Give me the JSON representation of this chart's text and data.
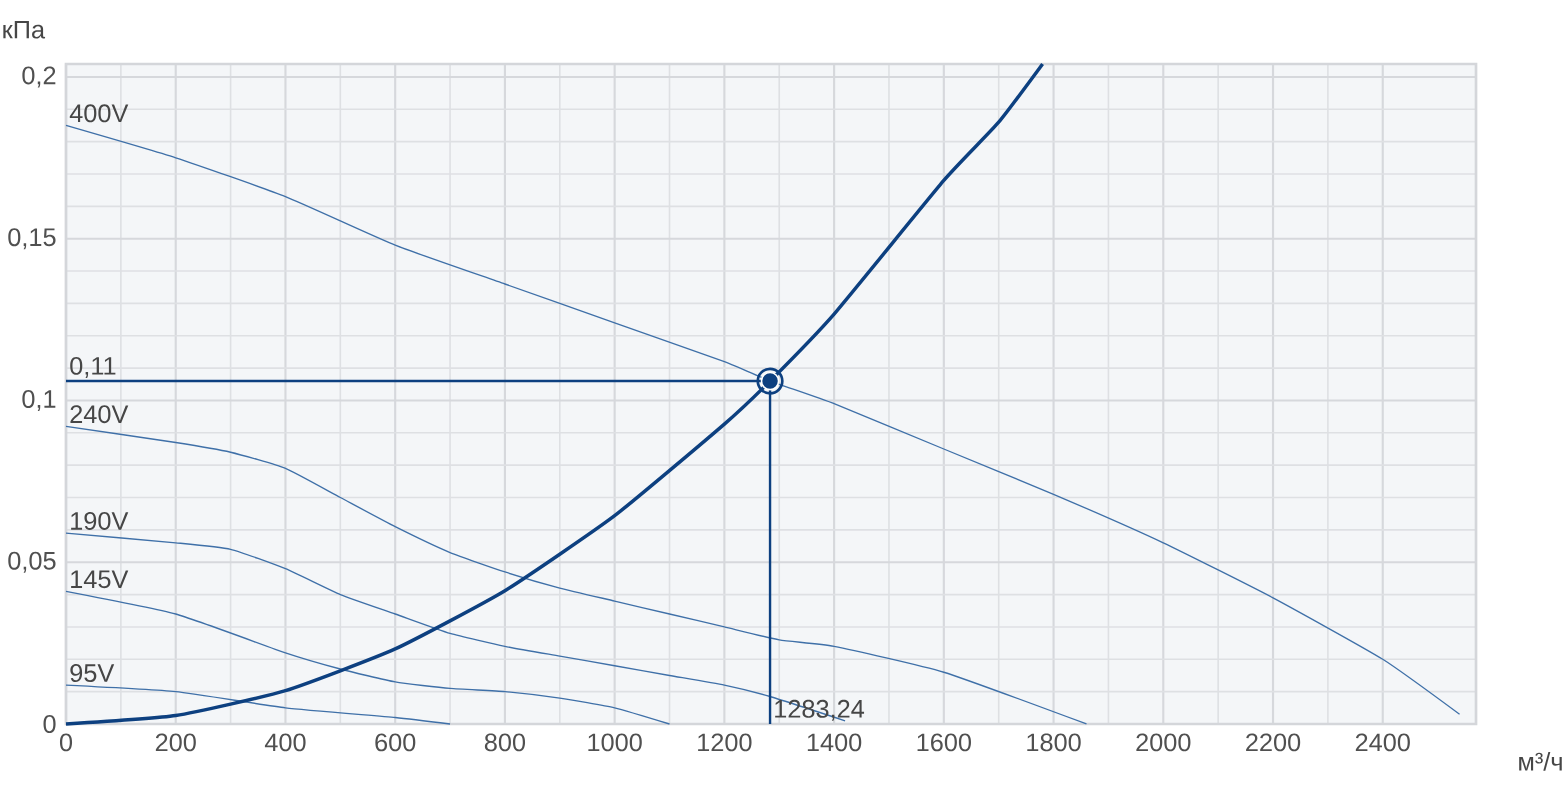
{
  "chart_data": {
    "type": "line",
    "xlabel": "м³/ч",
    "ylabel": "кПа",
    "xlim": [
      0,
      2570
    ],
    "ylim": [
      0,
      0.204
    ],
    "xticks": [
      0,
      200,
      400,
      600,
      800,
      1000,
      1200,
      1400,
      1600,
      1800,
      2000,
      2200,
      2400
    ],
    "yticks": [
      0,
      {
        "value": 0.05,
        "label": "0,05"
      },
      {
        "value": 0.1,
        "label": "0,1"
      },
      {
        "value": 0.15,
        "label": "0,15"
      },
      {
        "value": 0.2,
        "label": "0,2"
      }
    ],
    "grid": true,
    "series": [
      {
        "name": "400V",
        "color": "#3f70a8",
        "x": [
          0,
          200,
          400,
          600,
          800,
          1000,
          1200,
          1283.24,
          1400,
          1600,
          1800,
          2000,
          2200,
          2400,
          2540
        ],
        "values": [
          0.185,
          0.175,
          0.163,
          0.148,
          0.136,
          0.124,
          0.112,
          0.106,
          0.099,
          0.085,
          0.071,
          0.056,
          0.039,
          0.02,
          0.003
        ]
      },
      {
        "name": "240V",
        "color": "#3f70a8",
        "x": [
          0,
          200,
          300,
          400,
          500,
          600,
          700,
          800,
          900,
          1000,
          1100,
          1200,
          1300,
          1400,
          1600,
          1860
        ],
        "values": [
          0.092,
          0.087,
          0.084,
          0.079,
          0.07,
          0.061,
          0.053,
          0.047,
          0.042,
          0.038,
          0.034,
          0.03,
          0.026,
          0.024,
          0.016,
          0
        ]
      },
      {
        "name": "190V",
        "color": "#3f70a8",
        "x": [
          0,
          200,
          300,
          400,
          500,
          600,
          700,
          800,
          900,
          1000,
          1100,
          1200,
          1283.24,
          1420
        ],
        "values": [
          0.059,
          0.056,
          0.054,
          0.048,
          0.04,
          0.034,
          0.028,
          0.024,
          0.021,
          0.018,
          0.015,
          0.012,
          0.0085,
          0.001
        ]
      },
      {
        "name": "145V",
        "color": "#3f70a8",
        "x": [
          0,
          200,
          400,
          500,
          600,
          700,
          800,
          900,
          1000,
          1100
        ],
        "values": [
          0.041,
          0.034,
          0.022,
          0.017,
          0.013,
          0.011,
          0.01,
          0.008,
          0.005,
          0
        ]
      },
      {
        "name": "95V",
        "color": "#3f70a8",
        "x": [
          0,
          200,
          400,
          600,
          700
        ],
        "values": [
          0.012,
          0.01,
          0.005,
          0.002,
          0
        ]
      },
      {
        "color": "#0d4080",
        "x": [
          0,
          200,
          400,
          600,
          800,
          1000,
          1200,
          1283.24,
          1400,
          1600,
          1700,
          1780
        ],
        "values": [
          0,
          0.0026,
          0.0103,
          0.0232,
          0.0412,
          0.0644,
          0.0927,
          0.106,
          0.1267,
          0.168,
          0.186,
          0.204
        ]
      },
      {
        "color": "#0d4080",
        "x": [
          0,
          1283.24
        ],
        "values": [
          0.106,
          0.106
        ]
      },
      {
        "color": "#0d4080",
        "x": [
          1283.24,
          1283.24
        ],
        "values": [
          0,
          0.106
        ]
      },
      {
        "type": "scatter",
        "marker": "circle",
        "color": "#0d4080",
        "x": [
          1283.24
        ],
        "values": [
          0.106
        ]
      }
    ],
    "annotations": [
      {
        "text": "0,11",
        "x": 0,
        "y": 0.106
      },
      {
        "text": "1283,24",
        "x": 1283.24,
        "y": 0
      }
    ]
  }
}
